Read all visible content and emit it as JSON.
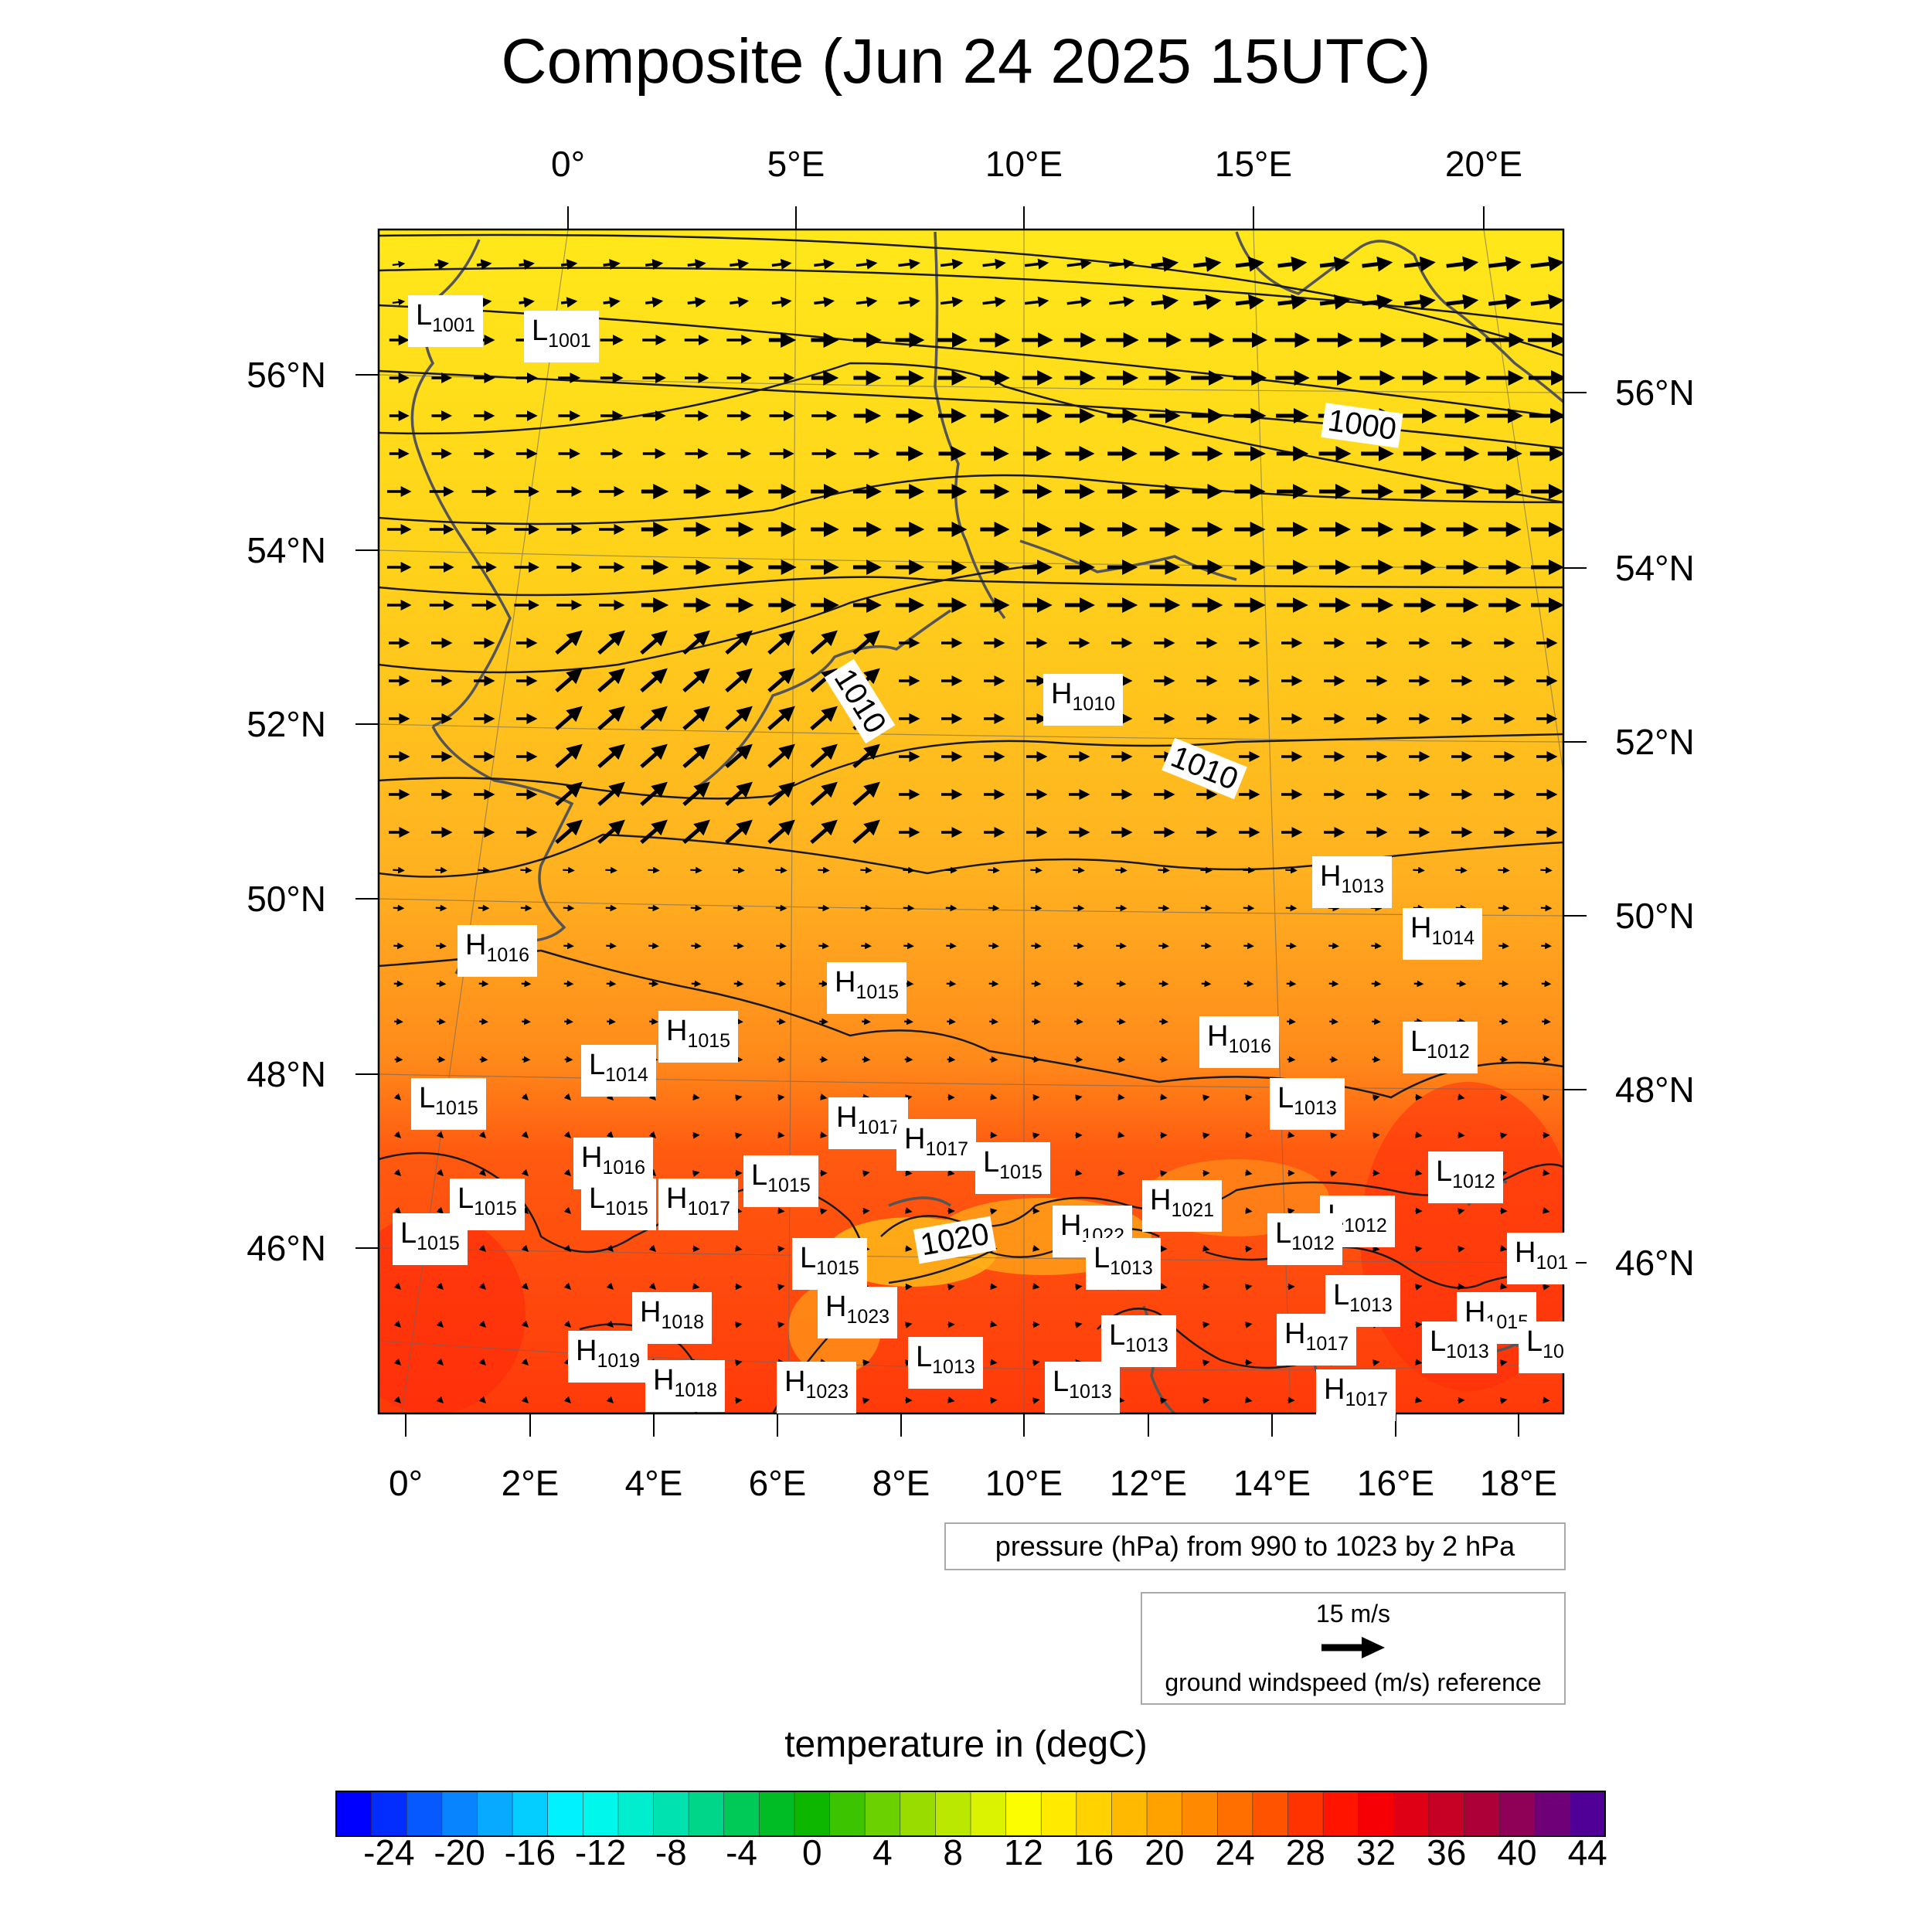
{
  "title": "Composite (Jun 24 2025 15UTC)",
  "map": {
    "top_lon_labels": [
      "0°",
      "5°E",
      "10°E",
      "15°E",
      "20°E"
    ],
    "bottom_lon_labels": [
      "0°",
      "2°E",
      "4°E",
      "6°E",
      "8°E",
      "10°E",
      "12°E",
      "14°E",
      "16°E",
      "18°E"
    ],
    "left_lat_labels": [
      "56°N",
      "54°N",
      "52°N",
      "50°N",
      "48°N",
      "46°N"
    ],
    "right_lat_labels": [
      "56°N",
      "54°N",
      "52°N",
      "50°N",
      "48°N",
      "46°N"
    ],
    "colors": {
      "north_field": "#ffe81a",
      "mid_field": "#ffb020",
      "south_field": "#ff3a0a",
      "contour": "#1a1a1a",
      "coastline": "#555555"
    },
    "isobar_labels": [
      "1000",
      "1010",
      "1010",
      "1020"
    ],
    "pressure_centers": [
      {
        "type": "L",
        "value": "1001"
      },
      {
        "type": "L",
        "value": "1001"
      },
      {
        "type": "H",
        "value": "1010"
      },
      {
        "type": "H",
        "value": "1013"
      },
      {
        "type": "H",
        "value": "1014"
      },
      {
        "type": "H",
        "value": "1016"
      },
      {
        "type": "H",
        "value": "1015"
      },
      {
        "type": "H",
        "value": "1015"
      },
      {
        "type": "L",
        "value": "1014"
      },
      {
        "type": "H",
        "value": "1016"
      },
      {
        "type": "L",
        "value": "1012"
      },
      {
        "type": "L",
        "value": "1015"
      },
      {
        "type": "L",
        "value": "1013"
      },
      {
        "type": "H",
        "value": "1017"
      },
      {
        "type": "H",
        "value": "1017"
      },
      {
        "type": "L",
        "value": "1015"
      },
      {
        "type": "H",
        "value": "1016"
      },
      {
        "type": "L",
        "value": "1015"
      },
      {
        "type": "L",
        "value": "1012"
      },
      {
        "type": "L",
        "value": "1015"
      },
      {
        "type": "L",
        "value": "1015"
      },
      {
        "type": "H",
        "value": "1017"
      },
      {
        "type": "H",
        "value": "1021"
      },
      {
        "type": "L",
        "value": "1012"
      },
      {
        "type": "L",
        "value": "1015"
      },
      {
        "type": "H",
        "value": "1022"
      },
      {
        "type": "L",
        "value": "1012"
      },
      {
        "type": "H",
        "value": "101"
      },
      {
        "type": "L",
        "value": "1015"
      },
      {
        "type": "L",
        "value": "1013"
      },
      {
        "type": "L",
        "value": "1013"
      },
      {
        "type": "H",
        "value": "1018"
      },
      {
        "type": "H",
        "value": "1023"
      },
      {
        "type": "H",
        "value": "1015"
      },
      {
        "type": "L",
        "value": "1013"
      },
      {
        "type": "H",
        "value": "1017"
      },
      {
        "type": "L",
        "value": "1013"
      },
      {
        "type": "L",
        "value": "10"
      },
      {
        "type": "H",
        "value": "1019"
      },
      {
        "type": "L",
        "value": "1013"
      },
      {
        "type": "H",
        "value": "1018"
      },
      {
        "type": "H",
        "value": "1023"
      },
      {
        "type": "L",
        "value": "1013"
      },
      {
        "type": "H",
        "value": "1017"
      }
    ]
  },
  "legend": {
    "pressure": "pressure (hPa) from 990 to 1023 by 2 hPa",
    "wind_speed": "15 m/s",
    "wind_reference": "ground windspeed (m/s) reference"
  },
  "colorbar": {
    "title": "temperature in (degC)",
    "ticks": [
      "-24",
      "-20",
      "-16",
      "-12",
      "-8",
      "-4",
      "0",
      "4",
      "8",
      "12",
      "16",
      "20",
      "24",
      "28",
      "32",
      "36",
      "40",
      "44"
    ],
    "min": -26,
    "max": 46,
    "step": 2,
    "color_stops": [
      "#0000ff",
      "#0a8cff",
      "#00ffff",
      "#00dca0",
      "#00b400",
      "#96dc00",
      "#ffff00",
      "#ffb400",
      "#ff6400",
      "#ff0000",
      "#b40032",
      "#500096"
    ]
  }
}
